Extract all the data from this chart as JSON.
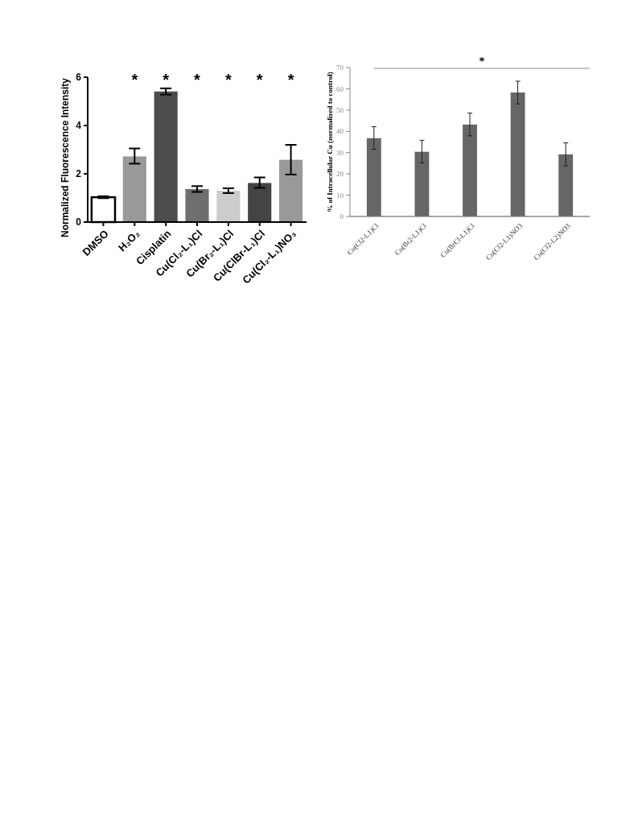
{
  "chart_data": [
    {
      "type": "bar",
      "ylabel": "Normalized Fluorescence Intensity",
      "categories": [
        "DMSO",
        "H₂O₂",
        "Cisplatin",
        "Cu(Cl₂-L₁)Cl",
        "Cu(Br₂-L₁)Cl",
        "Cu(ClBr-L₁)Cl",
        "Cu(Cl₂-L₁)NO₃"
      ],
      "values": [
        1.03,
        2.72,
        5.41,
        1.37,
        1.3,
        1.62,
        2.58
      ],
      "colors": [
        "#ffffff",
        "#999999",
        "#4d4d4d",
        "#6e6e6e",
        "#cccccc",
        "#444444",
        "#999999"
      ],
      "errors": [
        0.04,
        [
          2.42,
          3.05
        ],
        0.13,
        0.12,
        0.1,
        [
          1.42,
          1.85
        ],
        [
          1.97,
          3.2
        ]
      ],
      "ylim": [
        0,
        6
      ],
      "yticks": [
        0,
        2,
        4,
        6
      ],
      "annotations": [
        "*",
        "*",
        "*",
        "*",
        "*",
        "*"
      ]
    },
    {
      "type": "bar",
      "ylabel": "% of Intracellular Cu (normalized to control)",
      "categories": [
        "Cu(Cl2-L1)Cl",
        "Cu(Br2-L1)Cl",
        "Cu(BrCl-L1)Cl",
        "Cu(Cl2-L1)NO3",
        "Cu(Cl2-L2)NO3"
      ],
      "values": [
        36.8,
        30.4,
        43.2,
        58.3,
        29.2
      ],
      "color": "#666666",
      "errors": [
        [
          31.6,
          42.2
        ],
        [
          25.2,
          35.8
        ],
        [
          37.9,
          48.6
        ],
        [
          52.9,
          63.6
        ],
        [
          23.8,
          34.6
        ]
      ],
      "ylim": [
        0,
        70
      ],
      "yticks": [
        0,
        10,
        20,
        30,
        40,
        50,
        60,
        70
      ],
      "annotations": [
        "*"
      ]
    }
  ]
}
